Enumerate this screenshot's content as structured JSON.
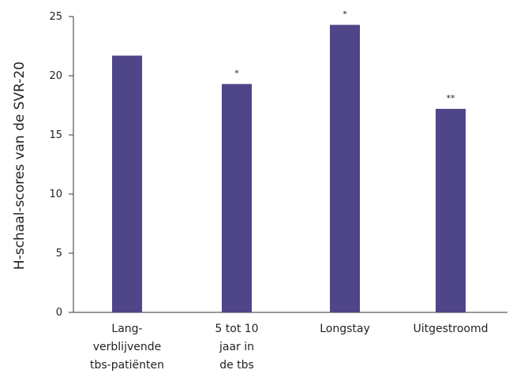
{
  "chart_data": {
    "type": "bar",
    "categories": [
      [
        "Lang-",
        "verblijvende",
        "tbs-patiënten"
      ],
      [
        "5 tot 10",
        "jaar in",
        "de tbs"
      ],
      [
        "Longstay"
      ],
      [
        "Uitgestroomd"
      ]
    ],
    "values": [
      21.7,
      19.3,
      24.3,
      17.2
    ],
    "annotations": [
      "",
      "*",
      "*",
      "**"
    ],
    "ylabel": "H-schaal-scores van de SVR-20",
    "xlabel": "",
    "ylim": [
      0,
      25
    ],
    "yticks": [
      0,
      5,
      10,
      15,
      20,
      25
    ],
    "bar_color": "#4f4589",
    "axis_color": "#333333",
    "grid": false,
    "legend": "none"
  }
}
